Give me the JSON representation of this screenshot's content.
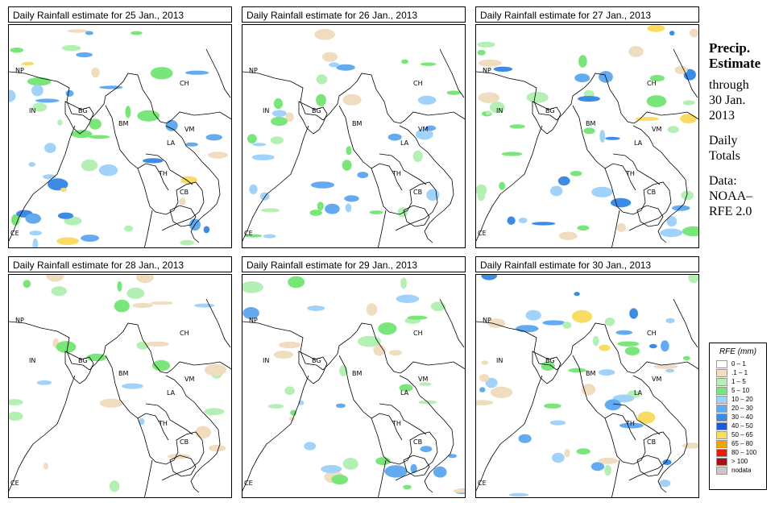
{
  "panels": [
    {
      "title": "Daily Rainfall estimate for  25 Jan., 2013",
      "intensity": 3
    },
    {
      "title": "Daily Rainfall estimate for  26 Jan., 2013",
      "intensity": 2
    },
    {
      "title": "Daily Rainfall estimate for  27 Jan., 2013",
      "intensity": 3
    },
    {
      "title": "Daily Rainfall estimate for  28 Jan., 2013",
      "intensity": 1
    },
    {
      "title": "Daily Rainfall estimate for  29 Jan., 2013",
      "intensity": 2
    },
    {
      "title": "Daily Rainfall estimate for  30 Jan., 2013",
      "intensity": 3
    }
  ],
  "country_labels": {
    "np": "NP",
    "ch": "CH",
    "in": "IN",
    "bg": "BG",
    "bm": "BM",
    "vm": "VM",
    "la": "LA",
    "th": "TH",
    "cb": "CB",
    "ce": "CE"
  },
  "side_info": {
    "title_line1": "Precip.",
    "title_line2": "Estimate",
    "through": "through",
    "date_line1": "30 Jan.",
    "date_line2": "2013",
    "daily_line1": "Daily",
    "daily_line2": "Totals",
    "data_line1": "Data:",
    "data_line2": "NOAA–",
    "data_line3": "RFE 2.0"
  },
  "legend": {
    "title": "RFE (mm)",
    "items": [
      {
        "label": "0 – 1",
        "color": "#ffffff"
      },
      {
        "label": ".1 – 1",
        "color": "#f0dcbf"
      },
      {
        "label": "1 – 5",
        "color": "#b4f0b4"
      },
      {
        "label": "5 – 10",
        "color": "#78e678"
      },
      {
        "label": "10 – 20",
        "color": "#a0d2fa"
      },
      {
        "label": "20 – 30",
        "color": "#64aaf0"
      },
      {
        "label": "30 – 40",
        "color": "#3c8ce6"
      },
      {
        "label": "40 – 50",
        "color": "#1e5adc"
      },
      {
        "label": "50 – 65",
        "color": "#fadc64"
      },
      {
        "label": "65 – 80",
        "color": "#faa000"
      },
      {
        "label": "80 – 100",
        "color": "#e61e00"
      },
      {
        "label": "> 100",
        "color": "#a01414"
      },
      {
        "label": "nodata",
        "color": "#c8c8c8"
      }
    ]
  }
}
